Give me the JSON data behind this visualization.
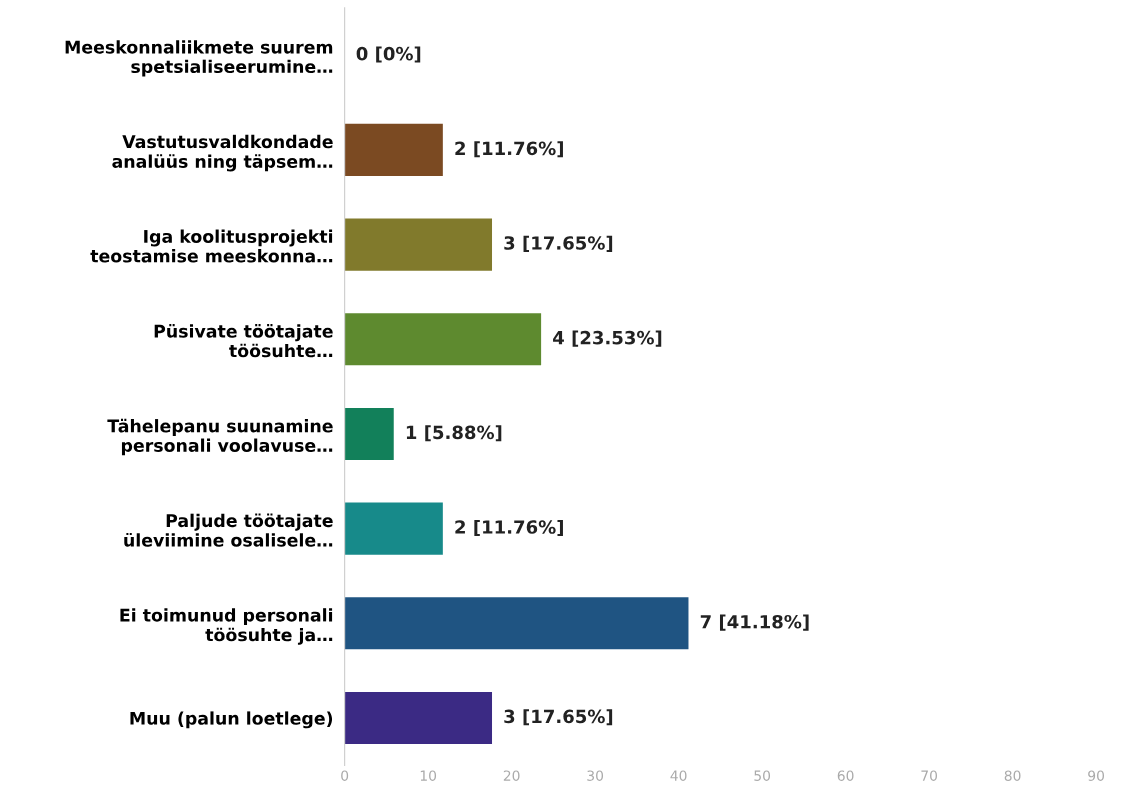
{
  "chart_data": {
    "type": "bar",
    "orientation": "horizontal",
    "categories": [
      "Meeskonnaliikmete suurem\nspetsialiseerumine…",
      "Vastutusvaldkondade\nanalüüs ning täpsem…",
      "Iga koolitusprojekti\nteostamise meeskonna…",
      "Püsivate töötajate\ntöösuhte…",
      "Tähelepanu suunamine\npersonali voolavuse…",
      "Paljude töötajate\nüleviimine osalisele…",
      "Ei toimunud personali\ntöösuhte ja…",
      "Muu (palun loetlege)"
    ],
    "values": [
      0,
      11.76,
      17.65,
      23.53,
      5.88,
      11.76,
      41.18,
      17.65
    ],
    "colors": [
      "#6b4a8a",
      "#7b4a22",
      "#817a2c",
      "#5e8a2f",
      "#12805a",
      "#178a8a",
      "#1f5482",
      "#3b2a84"
    ],
    "value_labels": [
      "0 [0%]",
      "2 [11.76%]",
      "3 [17.65%]",
      "4 [23.53%]",
      "1 [5.88%]",
      "2 [11.76%]",
      "7 [41.18%]",
      "3 [17.65%]"
    ],
    "xlim": [
      0,
      90
    ],
    "xticks": [
      0,
      10,
      20,
      30,
      40,
      50,
      60,
      70,
      80,
      90
    ],
    "grid": false,
    "legend": false
  }
}
